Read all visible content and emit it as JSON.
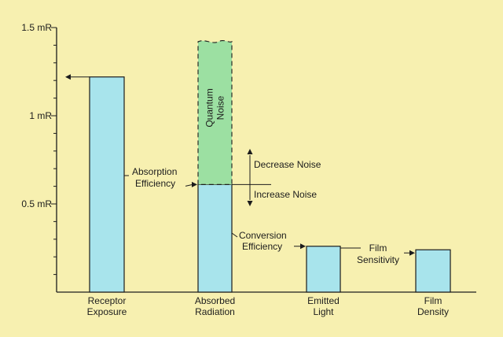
{
  "chart_data": {
    "type": "bar",
    "ylim": [
      0,
      1.5
    ],
    "y_ticks": [
      {
        "value": 0.5,
        "label": "0.5 mR"
      },
      {
        "value": 1.0,
        "label": "1 mR"
      },
      {
        "value": 1.5,
        "label": "1.5 mR"
      }
    ],
    "y_minor_tick_step": 0.1,
    "categories": [
      [
        "Receptor",
        "Exposure"
      ],
      [
        "Absorbed",
        "Radiation"
      ],
      [
        "Emitted",
        "Light"
      ],
      [
        "Film",
        "Density"
      ]
    ],
    "values": [
      1.22,
      0.61,
      0.26,
      0.24
    ],
    "quantum_noise_segment": {
      "category_index": 1,
      "from": 0.61,
      "to": 1.42,
      "label": [
        "Quantum",
        "Noise"
      ]
    },
    "annotations": {
      "absorption_efficiency": [
        "Absorption",
        "Efficiency"
      ],
      "conversion_efficiency": [
        "Conversion",
        "Efficiency"
      ],
      "film_sensitivity": [
        "Film",
        "Sensitivity"
      ],
      "decrease_noise": "Decrease Noise",
      "increase_noise": "Increase Noise"
    },
    "colors": {
      "background": "#f7f0b0",
      "bar_fill": "#a8e4ec",
      "noise_fill": "#9ce0a2",
      "line": "#1c1c1c"
    }
  }
}
